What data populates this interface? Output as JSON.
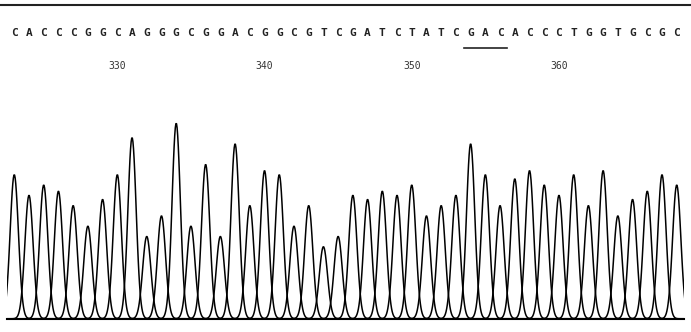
{
  "chart_data": {
    "type": "line",
    "bases": [
      "C",
      "A",
      "C",
      "C",
      "C",
      "G",
      "G",
      "C",
      "A",
      "G",
      "G",
      "G",
      "C",
      "G",
      "G",
      "A",
      "C",
      "G",
      "G",
      "C",
      "G",
      "T",
      "C",
      "G",
      "A",
      "T",
      "C",
      "T",
      "A",
      "T",
      "C",
      "G",
      "A",
      "C",
      "A",
      "C",
      "C",
      "C",
      "T",
      "G",
      "G",
      "T",
      "G",
      "C",
      "G",
      "C"
    ],
    "x": [
      323,
      324,
      325,
      326,
      327,
      328,
      329,
      330,
      331,
      332,
      333,
      334,
      335,
      336,
      337,
      338,
      339,
      340,
      341,
      342,
      343,
      344,
      345,
      346,
      347,
      348,
      349,
      350,
      351,
      352,
      353,
      354,
      355,
      356,
      357,
      358,
      359,
      360,
      361,
      362,
      363,
      364,
      365,
      366,
      367,
      368
    ],
    "values": [
      70,
      60,
      65,
      62,
      55,
      45,
      58,
      70,
      88,
      40,
      50,
      95,
      45,
      75,
      40,
      85,
      55,
      72,
      70,
      45,
      55,
      35,
      40,
      60,
      58,
      62,
      60,
      65,
      50,
      55,
      60,
      85,
      70,
      55,
      68,
      72,
      65,
      60,
      70,
      55,
      72,
      50,
      58,
      62,
      70,
      65
    ],
    "highlight": [
      354,
      356
    ],
    "xlim": [
      322.5,
      368.5
    ],
    "xticks": [
      330,
      340,
      350,
      360
    ],
    "ylim": [
      0,
      100
    ],
    "color": "#000000",
    "tick_labels": false
  }
}
